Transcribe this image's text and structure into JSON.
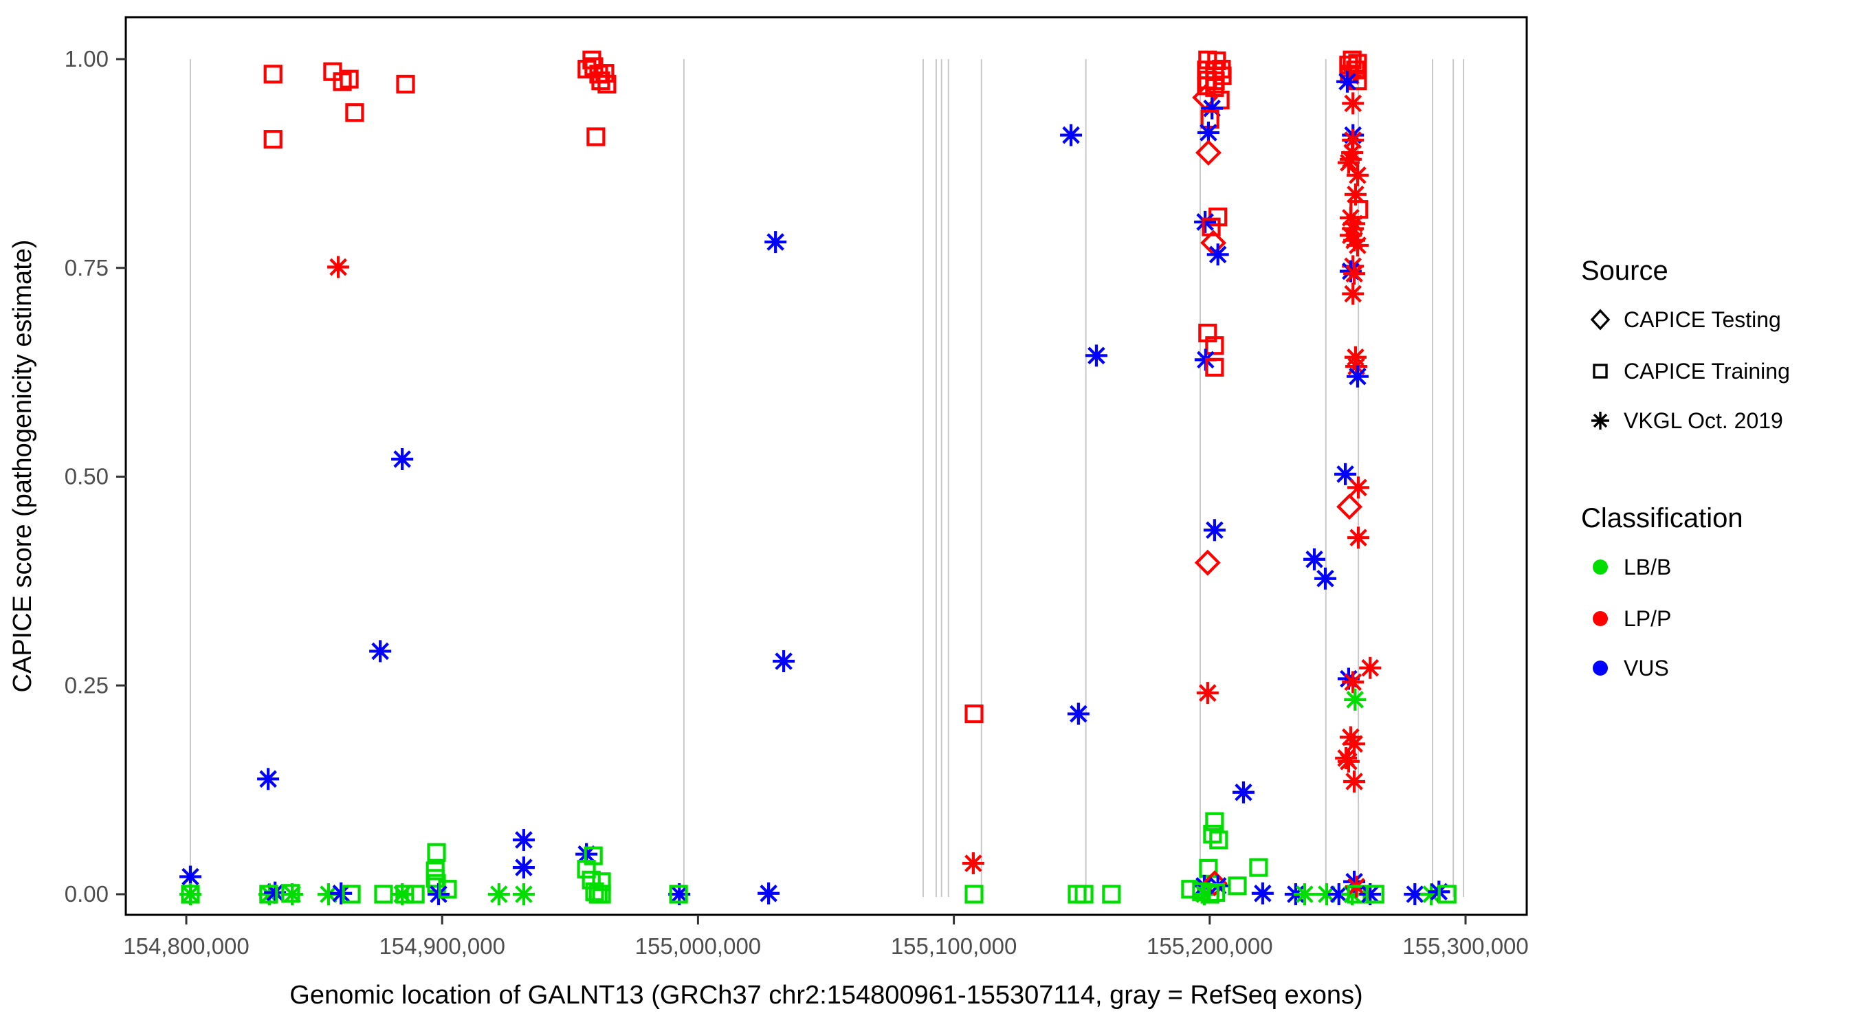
{
  "axes": {
    "x": {
      "label": "Genomic location of GALNT13 (GRCh37 chr2:154800961-155307114, gray = RefSeq exons)",
      "ticks": [
        {
          "bp": 154800000,
          "label": "154,800,000"
        },
        {
          "bp": 154900000,
          "label": "154,900,000"
        },
        {
          "bp": 155000000,
          "label": "155,000,000"
        },
        {
          "bp": 155100000,
          "label": "155,100,000"
        },
        {
          "bp": 155200000,
          "label": "155,200,000"
        },
        {
          "bp": 155300000,
          "label": "155,300,000"
        }
      ]
    },
    "y": {
      "label": "CAPICE score (pathogenicity estimate)",
      "ticks": [
        {
          "v": 0.0,
          "label": "0.00"
        },
        {
          "v": 0.25,
          "label": "0.25"
        },
        {
          "v": 0.5,
          "label": "0.50"
        },
        {
          "v": 0.75,
          "label": "0.75"
        },
        {
          "v": 1.0,
          "label": "1.00"
        }
      ]
    }
  },
  "legend": {
    "source": {
      "title": "Source",
      "items": [
        {
          "symbol": "diamond-icon",
          "label": "CAPICE Testing"
        },
        {
          "symbol": "square-icon",
          "label": "CAPICE Training"
        },
        {
          "symbol": "asterisk-icon",
          "label": "VKGL Oct. 2019"
        }
      ]
    },
    "classification": {
      "title": "Classification",
      "items": [
        {
          "color": "#00DD00",
          "label": "LB/B"
        },
        {
          "color": "#FF0000",
          "label": "LP/P"
        },
        {
          "color": "#0000FF",
          "label": "VUS"
        }
      ]
    }
  },
  "chart_data": {
    "type": "scatter",
    "title": "",
    "xlabel": "Genomic location of GALNT13 (GRCh37 chr2:154800961-155307114, gray = RefSeq exons)",
    "ylabel": "CAPICE score (pathogenicity estimate)",
    "x_range_bp": [
      154776000,
      155324000
    ],
    "ylim": [
      0,
      1
    ],
    "grid": false,
    "legend_position": "right",
    "source_marker_map": {
      "T": "CAPICE Testing (diamond)",
      "R": "CAPICE Training (square)",
      "V": "VKGL Oct. 2019 (asterisk)"
    },
    "class_colors": {
      "B": "#00DD00",
      "P": "#FF0000",
      "U": "#0000FF"
    },
    "class_names": {
      "B": "LB/B",
      "P": "LP/P",
      "U": "VUS"
    },
    "exon_gridline_color": "#C9C9C9",
    "refseq_exons_bp": [
      154801600,
      154994500,
      155088000,
      155093100,
      155095200,
      155097900,
      155110800,
      155151600,
      155196300,
      155245400,
      155258100,
      155287100,
      155295200,
      155299200
    ],
    "points": [
      [
        154833900,
        0.982,
        "R",
        "P"
      ],
      [
        154857200,
        0.985,
        "R",
        "P"
      ],
      [
        154861000,
        0.973,
        "R",
        "P"
      ],
      [
        154863700,
        0.976,
        "R",
        "P"
      ],
      [
        154885700,
        0.97,
        "R",
        "P"
      ],
      [
        154865800,
        0.936,
        "R",
        "P"
      ],
      [
        154833900,
        0.904,
        "R",
        "P"
      ],
      [
        154859400,
        0.751,
        "V",
        "P"
      ],
      [
        154958500,
        0.999,
        "R",
        "P"
      ],
      [
        154959300,
        0.991,
        "R",
        "P"
      ],
      [
        154956600,
        0.988,
        "R",
        "P"
      ],
      [
        154961200,
        0.982,
        "R",
        "P"
      ],
      [
        154963600,
        0.983,
        "R",
        "P"
      ],
      [
        154962000,
        0.974,
        "R",
        "P"
      ],
      [
        154964400,
        0.97,
        "R",
        "P"
      ],
      [
        154960100,
        0.907,
        "R",
        "P"
      ],
      [
        154884400,
        0.521,
        "V",
        "U"
      ],
      [
        154875800,
        0.291,
        "V",
        "U"
      ],
      [
        154832000,
        0.138,
        "V",
        "U"
      ],
      [
        155030300,
        0.781,
        "V",
        "U"
      ],
      [
        155033500,
        0.279,
        "V",
        "U"
      ],
      [
        154801600,
        0.021,
        "V",
        "U"
      ],
      [
        154801600,
        0.0,
        "V",
        "B"
      ],
      [
        154801600,
        0.0,
        "R",
        "B"
      ],
      [
        154832500,
        0.0,
        "V",
        "B"
      ],
      [
        154834700,
        0.002,
        "V",
        "U"
      ],
      [
        154832200,
        0.0,
        "R",
        "B"
      ],
      [
        154840800,
        0.001,
        "R",
        "B"
      ],
      [
        154841400,
        0.0,
        "V",
        "B"
      ],
      [
        154855600,
        0.0,
        "V",
        "B"
      ],
      [
        154860500,
        0.001,
        "V",
        "U"
      ],
      [
        154864500,
        0.0,
        "R",
        "B"
      ],
      [
        154877100,
        0.0,
        "R",
        "B"
      ],
      [
        154884400,
        0.0,
        "V",
        "B"
      ],
      [
        154885400,
        0.0,
        "R",
        "B"
      ],
      [
        154889500,
        0.0,
        "R",
        "B"
      ],
      [
        154897800,
        0.05,
        "R",
        "B"
      ],
      [
        154897300,
        0.028,
        "R",
        "B"
      ],
      [
        154897300,
        0.019,
        "R",
        "B"
      ],
      [
        154897800,
        0.013,
        "R",
        "B"
      ],
      [
        154898600,
        0.0,
        "V",
        "U"
      ],
      [
        154902100,
        0.006,
        "R",
        "B"
      ],
      [
        154922200,
        0.0,
        "V",
        "B"
      ],
      [
        154931900,
        0.065,
        "V",
        "U"
      ],
      [
        154931900,
        0.032,
        "V",
        "U"
      ],
      [
        154931900,
        0.0,
        "V",
        "B"
      ],
      [
        154956400,
        0.048,
        "V",
        "U"
      ],
      [
        154959100,
        0.046,
        "R",
        "B"
      ],
      [
        154956400,
        0.03,
        "R",
        "B"
      ],
      [
        154958300,
        0.017,
        "R",
        "B"
      ],
      [
        154962300,
        0.015,
        "R",
        "B"
      ],
      [
        154959600,
        0.003,
        "R",
        "B"
      ],
      [
        154962300,
        0.0,
        "R",
        "B"
      ],
      [
        154961000,
        0.0,
        "R",
        "B"
      ],
      [
        154992700,
        0.0,
        "V",
        "U"
      ],
      [
        154992400,
        0.0,
        "R",
        "B"
      ],
      [
        155027600,
        0.001,
        "V",
        "U"
      ],
      [
        155107900,
        0.216,
        "R",
        "P"
      ],
      [
        155107600,
        0.037,
        "V",
        "P"
      ],
      [
        155107900,
        0.0,
        "R",
        "B"
      ],
      [
        155145800,
        0.909,
        "V",
        "U"
      ],
      [
        155155700,
        0.645,
        "V",
        "U"
      ],
      [
        155148700,
        0.216,
        "V",
        "U"
      ],
      [
        155148200,
        0.0,
        "R",
        "B"
      ],
      [
        155150900,
        0.0,
        "R",
        "B"
      ],
      [
        155161600,
        0.0,
        "R",
        "B"
      ],
      [
        155199200,
        0.999,
        "R",
        "P"
      ],
      [
        155202700,
        0.998,
        "R",
        "P"
      ],
      [
        155198700,
        0.987,
        "R",
        "P"
      ],
      [
        155201900,
        0.986,
        "R",
        "P"
      ],
      [
        155204600,
        0.988,
        "R",
        "P"
      ],
      [
        155199200,
        0.975,
        "R",
        "P"
      ],
      [
        155202200,
        0.974,
        "R",
        "P"
      ],
      [
        155204900,
        0.98,
        "R",
        "P"
      ],
      [
        155198700,
        0.968,
        "R",
        "P"
      ],
      [
        155201900,
        0.966,
        "R",
        "P"
      ],
      [
        155198200,
        0.954,
        "T",
        "P"
      ],
      [
        155204100,
        0.951,
        "R",
        "P"
      ],
      [
        155200900,
        0.941,
        "V",
        "U"
      ],
      [
        155200100,
        0.928,
        "R",
        "P"
      ],
      [
        155199500,
        0.912,
        "V",
        "U"
      ],
      [
        155199500,
        0.888,
        "T",
        "P"
      ],
      [
        155203200,
        0.811,
        "R",
        "P"
      ],
      [
        155198200,
        0.805,
        "V",
        "U"
      ],
      [
        155200600,
        0.799,
        "R",
        "P"
      ],
      [
        155201400,
        0.78,
        "T",
        "P"
      ],
      [
        155203200,
        0.766,
        "V",
        "U"
      ],
      [
        155199200,
        0.672,
        "R",
        "P"
      ],
      [
        155201900,
        0.657,
        "R",
        "P"
      ],
      [
        155198400,
        0.64,
        "V",
        "U"
      ],
      [
        155201900,
        0.631,
        "R",
        "P"
      ],
      [
        155201900,
        0.436,
        "V",
        "U"
      ],
      [
        155199200,
        0.397,
        "T",
        "P"
      ],
      [
        155199200,
        0.241,
        "V",
        "P"
      ],
      [
        155213200,
        0.122,
        "V",
        "U"
      ],
      [
        155201900,
        0.087,
        "R",
        "B"
      ],
      [
        155201100,
        0.072,
        "R",
        "B"
      ],
      [
        155203500,
        0.065,
        "R",
        "B"
      ],
      [
        155199500,
        0.031,
        "R",
        "B"
      ],
      [
        155192500,
        0.006,
        "R",
        "B"
      ],
      [
        155197900,
        0.01,
        "V",
        "U"
      ],
      [
        155197900,
        0.0,
        "V",
        "B"
      ],
      [
        155201900,
        0.013,
        "T",
        "P"
      ],
      [
        155203200,
        0.01,
        "V",
        "U"
      ],
      [
        155196800,
        0.003,
        "R",
        "B"
      ],
      [
        155200100,
        0.0,
        "R",
        "B"
      ],
      [
        155202400,
        0.002,
        "R",
        "B"
      ],
      [
        155210800,
        0.01,
        "R",
        "B"
      ],
      [
        155219100,
        0.032,
        "R",
        "B"
      ],
      [
        155220700,
        0.001,
        "V",
        "U"
      ],
      [
        155255700,
        0.999,
        "R",
        "P"
      ],
      [
        155257800,
        0.995,
        "R",
        "P"
      ],
      [
        155254300,
        0.993,
        "R",
        "P"
      ],
      [
        155257000,
        0.987,
        "R",
        "P"
      ],
      [
        155254600,
        0.982,
        "R",
        "P"
      ],
      [
        155257800,
        0.974,
        "R",
        "P"
      ],
      [
        155255100,
        0.98,
        "V",
        "P"
      ],
      [
        155253800,
        0.973,
        "V",
        "U"
      ],
      [
        155256000,
        0.947,
        "V",
        "P"
      ],
      [
        155256000,
        0.909,
        "V",
        "U"
      ],
      [
        155256000,
        0.903,
        "V",
        "P"
      ],
      [
        155255700,
        0.888,
        "V",
        "P"
      ],
      [
        155255100,
        0.88,
        "V",
        "P"
      ],
      [
        155254300,
        0.876,
        "V",
        "P"
      ],
      [
        155257800,
        0.861,
        "V",
        "P"
      ],
      [
        155257000,
        0.838,
        "V",
        "P"
      ],
      [
        155258300,
        0.82,
        "R",
        "P"
      ],
      [
        155255100,
        0.81,
        "V",
        "P"
      ],
      [
        155256500,
        0.803,
        "V",
        "P"
      ],
      [
        155256000,
        0.797,
        "V",
        "P"
      ],
      [
        155255100,
        0.789,
        "V",
        "P"
      ],
      [
        155256500,
        0.783,
        "V",
        "P"
      ],
      [
        155257800,
        0.777,
        "V",
        "P"
      ],
      [
        155256000,
        0.752,
        "V",
        "P"
      ],
      [
        155255100,
        0.746,
        "V",
        "U"
      ],
      [
        155256500,
        0.743,
        "V",
        "P"
      ],
      [
        155256000,
        0.719,
        "V",
        "P"
      ],
      [
        155257000,
        0.643,
        "V",
        "P"
      ],
      [
        155257300,
        0.632,
        "V",
        "P"
      ],
      [
        155257800,
        0.62,
        "V",
        "U"
      ],
      [
        155253000,
        0.503,
        "V",
        "U"
      ],
      [
        155258100,
        0.487,
        "V",
        "P"
      ],
      [
        155254600,
        0.464,
        "T",
        "P"
      ],
      [
        155258100,
        0.427,
        "V",
        "P"
      ],
      [
        155240900,
        0.401,
        "V",
        "U"
      ],
      [
        155245200,
        0.378,
        "V",
        "U"
      ],
      [
        155262700,
        0.271,
        "V",
        "P"
      ],
      [
        155254300,
        0.258,
        "V",
        "U"
      ],
      [
        155256000,
        0.254,
        "V",
        "P"
      ],
      [
        155256800,
        0.233,
        "V",
        "B"
      ],
      [
        155255100,
        0.188,
        "V",
        "P"
      ],
      [
        155256500,
        0.18,
        "V",
        "P"
      ],
      [
        155253300,
        0.163,
        "V",
        "P"
      ],
      [
        155254300,
        0.159,
        "V",
        "P"
      ],
      [
        155256500,
        0.135,
        "V",
        "P"
      ],
      [
        155233600,
        0.0,
        "V",
        "U"
      ],
      [
        155237100,
        0.0,
        "V",
        "B"
      ],
      [
        155245700,
        0.0,
        "V",
        "B"
      ],
      [
        155250500,
        0.0,
        "V",
        "U"
      ],
      [
        155255700,
        0.0,
        "V",
        "B"
      ],
      [
        155256500,
        0.015,
        "V",
        "U"
      ],
      [
        155257300,
        0.009,
        "V",
        "P"
      ],
      [
        155257300,
        0.0,
        "R",
        "B"
      ],
      [
        155262700,
        0.0,
        "V",
        "U"
      ],
      [
        155264600,
        0.0,
        "R",
        "B"
      ],
      [
        155280200,
        0.0,
        "V",
        "U"
      ],
      [
        155286600,
        0.0,
        "V",
        "B"
      ],
      [
        155289600,
        0.003,
        "V",
        "U"
      ],
      [
        155292800,
        0.0,
        "R",
        "B"
      ]
    ]
  }
}
